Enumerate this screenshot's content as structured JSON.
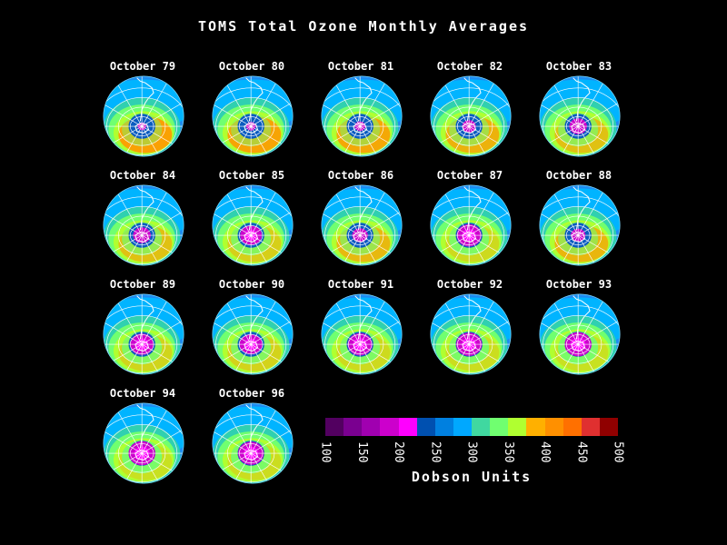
{
  "title": "TOMS Total Ozone Monthly Averages",
  "panels": [
    {
      "label": "October 79",
      "hole_level": 0.1
    },
    {
      "label": "October 80",
      "hole_level": 0.15
    },
    {
      "label": "October 81",
      "hole_level": 0.2
    },
    {
      "label": "October 82",
      "hole_level": 0.35
    },
    {
      "label": "October 83",
      "hole_level": 0.55
    },
    {
      "label": "October 84",
      "hole_level": 0.55
    },
    {
      "label": "October 85",
      "hole_level": 0.75
    },
    {
      "label": "October 86",
      "hole_level": 0.45
    },
    {
      "label": "October 87",
      "hole_level": 0.9
    },
    {
      "label": "October 88",
      "hole_level": 0.4
    },
    {
      "label": "October 89",
      "hole_level": 0.85
    },
    {
      "label": "October 90",
      "hole_level": 0.8
    },
    {
      "label": "October 91",
      "hole_level": 0.9
    },
    {
      "label": "October 92",
      "hole_level": 0.95
    },
    {
      "label": "October 93",
      "hole_level": 1.0
    },
    {
      "label": "October 94",
      "hole_level": 1.0
    },
    {
      "label": "October 96",
      "hole_level": 0.95
    }
  ],
  "legend": {
    "ticks": [
      "100",
      "150",
      "200",
      "250",
      "300",
      "350",
      "400",
      "450",
      "500"
    ],
    "units_label": "Dobson Units",
    "colors": [
      "#520060",
      "#7a0090",
      "#a000b0",
      "#cc00cc",
      "#ff00ff",
      "#0050b0",
      "#0080e0",
      "#00a8ff",
      "#40d8a0",
      "#70ff70",
      "#b0ff30",
      "#ffb000",
      "#ff9000",
      "#ff7000",
      "#e03030",
      "#900000"
    ]
  }
}
